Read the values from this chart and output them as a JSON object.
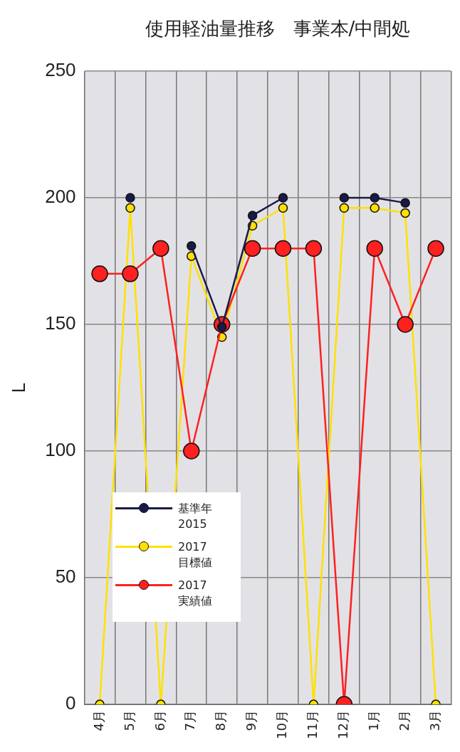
{
  "chart_data": {
    "type": "line",
    "title": "使用軽油量推移　事業本/中間処",
    "ylabel": "L",
    "categories": [
      "4月",
      "5月",
      "6月",
      "7月",
      "8月",
      "9月",
      "10月",
      "11月",
      "12月",
      "1月",
      "2月",
      "3月"
    ],
    "ylim": [
      0,
      250
    ],
    "yticks": [
      0,
      50,
      100,
      150,
      200,
      250
    ],
    "grid": true,
    "legend": "bottom left",
    "marker": "circle",
    "series": [
      {
        "name": "基準年\n2015",
        "color": "#1a1a48",
        "values": [
          null,
          200,
          null,
          181,
          149,
          193,
          200,
          null,
          200,
          200,
          198,
          null
        ]
      },
      {
        "name": "2017\n目標値",
        "color": "#ffe000",
        "values": [
          0,
          196,
          0,
          177,
          145,
          189,
          196,
          0,
          196,
          196,
          194,
          0
        ]
      },
      {
        "name": "2017\n実績値",
        "color": "#ff2020",
        "values": [
          170,
          170,
          180,
          100,
          150,
          180,
          180,
          180,
          0,
          180,
          150,
          180
        ]
      }
    ]
  }
}
